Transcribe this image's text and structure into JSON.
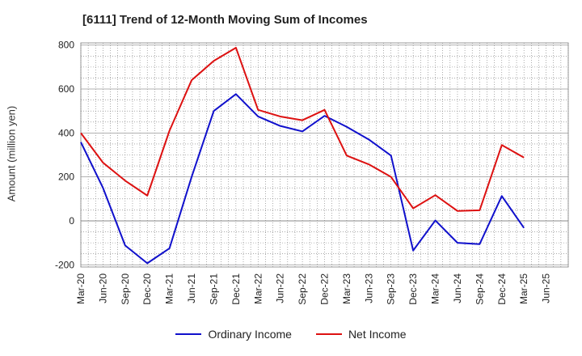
{
  "title": "[6111]  Trend of 12-Month Moving Sum of Incomes",
  "colors": {
    "ordinary": "#1010cc",
    "net": "#dd1111"
  },
  "chart_data": {
    "type": "line",
    "title": "[6111]  Trend of 12-Month Moving Sum of Incomes",
    "xlabel": "",
    "ylabel": "Amount (million yen)",
    "ylim": [
      -210,
      810
    ],
    "yticks": [
      "800",
      "600",
      "400",
      "200",
      "0",
      "-200"
    ],
    "ytick_values": [
      800,
      600,
      400,
      200,
      0,
      -200
    ],
    "categories": [
      "Mar-20",
      "Jun-20",
      "Sep-20",
      "Dec-20",
      "Mar-21",
      "Jun-21",
      "Sep-21",
      "Dec-21",
      "Mar-22",
      "Jun-22",
      "Sep-22",
      "Dec-22",
      "Mar-23",
      "Jun-23",
      "Sep-23",
      "Dec-23",
      "Mar-24",
      "Jun-24",
      "Sep-24",
      "Dec-24",
      "Mar-25",
      "Jun-25"
    ],
    "grid": true,
    "legend_position": "bottom",
    "series": [
      {
        "name": "Ordinary Income",
        "color": "#1010cc",
        "values": [
          358,
          150,
          -112,
          -193,
          -125,
          200,
          500,
          577,
          475,
          432,
          407,
          478,
          428,
          370,
          297,
          -135,
          2,
          -100,
          -106,
          113,
          -32,
          null
        ]
      },
      {
        "name": "Net Income",
        "color": "#dd1111",
        "values": [
          400,
          265,
          183,
          115,
          410,
          640,
          728,
          788,
          505,
          475,
          458,
          505,
          297,
          257,
          200,
          57,
          117,
          45,
          48,
          345,
          288,
          null
        ]
      }
    ]
  },
  "legend": {
    "ordinary": "Ordinary Income",
    "net": "Net Income"
  }
}
